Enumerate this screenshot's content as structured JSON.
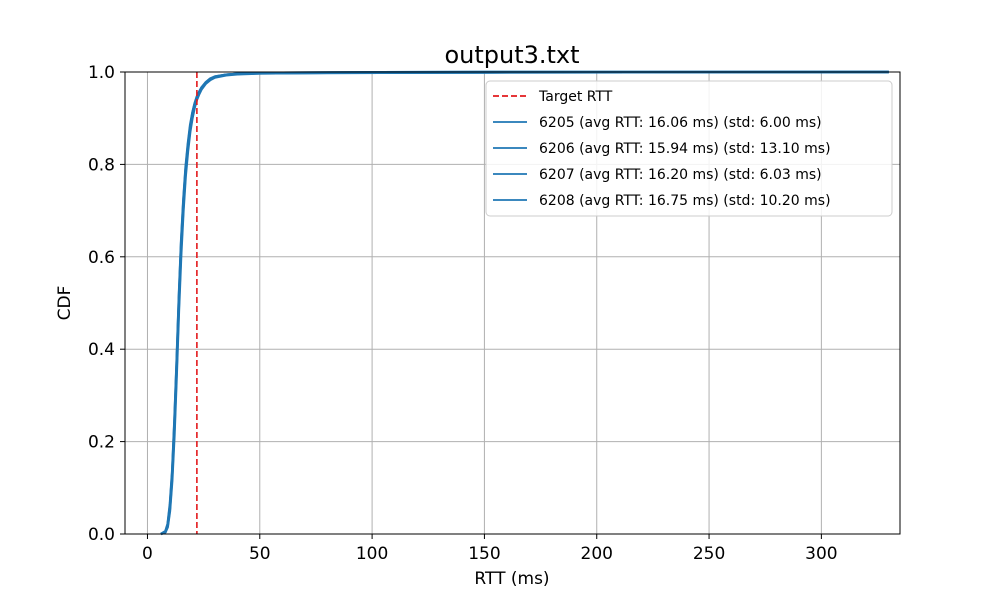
{
  "chart_data": {
    "type": "line",
    "title": "output3.txt",
    "xlabel": "RTT (ms)",
    "ylabel": "CDF",
    "xlim": [
      -10,
      335
    ],
    "ylim": [
      0,
      1.0
    ],
    "xticks": [
      0,
      50,
      100,
      150,
      200,
      250,
      300
    ],
    "yticks": [
      0.0,
      0.2,
      0.4,
      0.6,
      0.8,
      1.0
    ],
    "xtick_labels": [
      "0",
      "50",
      "100",
      "150",
      "200",
      "250",
      "300"
    ],
    "ytick_labels": [
      "0.0",
      "0.2",
      "0.4",
      "0.6",
      "0.8",
      "1.0"
    ],
    "grid": true,
    "legend_position": "top-right",
    "target_line": {
      "name": "Target RTT",
      "x": 22,
      "color": "#e31a1c",
      "style": "dashed"
    },
    "series": [
      {
        "name": "6205 (avg RTT: 16.06 ms) (std: 6.00 ms)",
        "color": "#1f77b4",
        "x": [
          6,
          8,
          9,
          10,
          11,
          12,
          13,
          14,
          15,
          16,
          17,
          18,
          19,
          20,
          21,
          22,
          23,
          24,
          26,
          28,
          30,
          35,
          40,
          50,
          80,
          150,
          330
        ],
        "y": [
          0,
          0.005,
          0.02,
          0.06,
          0.13,
          0.24,
          0.37,
          0.51,
          0.63,
          0.72,
          0.79,
          0.84,
          0.88,
          0.91,
          0.93,
          0.945,
          0.955,
          0.965,
          0.977,
          0.985,
          0.99,
          0.994,
          0.996,
          0.998,
          0.999,
          1.0,
          1.0
        ]
      },
      {
        "name": "6206 (avg RTT: 15.94 ms) (std: 13.10 ms)",
        "color": "#1f77b4",
        "x": [
          6,
          8,
          9,
          10,
          11,
          12,
          13,
          14,
          15,
          16,
          17,
          18,
          19,
          20,
          21,
          22,
          23,
          24,
          26,
          28,
          30,
          35,
          40,
          50,
          80,
          150,
          330
        ],
        "y": [
          0,
          0.006,
          0.022,
          0.065,
          0.135,
          0.245,
          0.375,
          0.515,
          0.635,
          0.725,
          0.795,
          0.845,
          0.885,
          0.912,
          0.932,
          0.947,
          0.957,
          0.966,
          0.978,
          0.986,
          0.99,
          0.994,
          0.996,
          0.997,
          0.998,
          0.999,
          1.0
        ]
      },
      {
        "name": "6207 (avg RTT: 16.20 ms) (std: 6.03 ms)",
        "color": "#1f77b4",
        "x": [
          6,
          8,
          9,
          10,
          11,
          12,
          13,
          14,
          15,
          16,
          17,
          18,
          19,
          20,
          21,
          22,
          23,
          24,
          26,
          28,
          30,
          35,
          40,
          50,
          80,
          150,
          330
        ],
        "y": [
          0,
          0.004,
          0.018,
          0.055,
          0.125,
          0.23,
          0.36,
          0.5,
          0.62,
          0.71,
          0.785,
          0.835,
          0.875,
          0.905,
          0.927,
          0.943,
          0.954,
          0.964,
          0.976,
          0.984,
          0.989,
          0.994,
          0.996,
          0.998,
          0.999,
          1.0,
          1.0
        ]
      },
      {
        "name": "6208 (avg RTT: 16.75 ms) (std: 10.20 ms)",
        "color": "#1f77b4",
        "x": [
          6,
          8,
          9,
          10,
          11,
          12,
          13,
          14,
          15,
          16,
          17,
          18,
          19,
          20,
          21,
          22,
          23,
          24,
          26,
          28,
          30,
          35,
          40,
          50,
          80,
          150,
          330
        ],
        "y": [
          0,
          0.004,
          0.015,
          0.05,
          0.115,
          0.215,
          0.345,
          0.485,
          0.605,
          0.7,
          0.775,
          0.828,
          0.87,
          0.9,
          0.923,
          0.94,
          0.952,
          0.962,
          0.975,
          0.983,
          0.988,
          0.993,
          0.995,
          0.997,
          0.998,
          0.999,
          1.0
        ]
      }
    ]
  }
}
